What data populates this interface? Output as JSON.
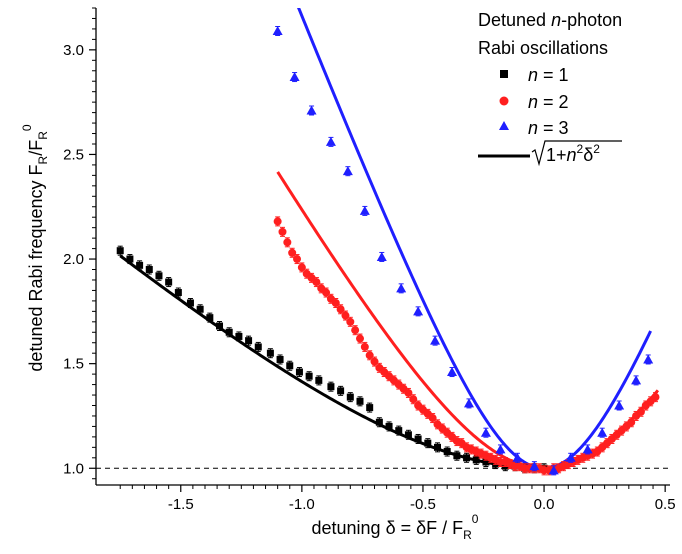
{
  "chart_data": {
    "type": "scatter",
    "xlabel": "detuning δ = δF / F",
    "xlabel_sub": "R",
    "xlabel_sup": "0",
    "ylabel": "detuned Rabi frequency F",
    "ylabel_sub1": "R",
    "ylabel_mid": "/F",
    "ylabel_sub2": "R",
    "ylabel_sup": "0",
    "xlim": [
      -1.85,
      0.52
    ],
    "ylim": [
      0.92,
      3.2
    ],
    "xticks": [
      -1.5,
      -1.0,
      -0.5,
      0.0,
      0.5
    ],
    "xtick_labels": [
      "-1.5",
      "-1.0",
      "-0.5",
      "0.0",
      "0.5"
    ],
    "yticks": [
      1.0,
      1.5,
      2.0,
      2.5,
      3.0
    ],
    "ytick_labels": [
      "1.0",
      "1.5",
      "2.0",
      "2.5",
      "3.0"
    ],
    "reference_line": {
      "y": 1.0,
      "style": "dashed"
    },
    "legend": {
      "position": "top-right",
      "title_line1": "Detuned",
      "title_italic": "n",
      "title_line1_rest": "-photon",
      "title_line2": "Rabi oscillations",
      "entries": [
        {
          "italic": "n",
          "text": " = 1"
        },
        {
          "italic": "n",
          "text": " = 2"
        },
        {
          "italic": "n",
          "text": " = 3"
        }
      ],
      "curve_label_prefix": "1+",
      "curve_label_n": "n",
      "curve_label_exp": "2",
      "curve_label_delta": "δ",
      "curve_label_delta_exp": "2"
    },
    "series": [
      {
        "name": "n = 1",
        "marker": "square",
        "color": "#000000",
        "x": [
          -1.75,
          -1.71,
          -1.67,
          -1.63,
          -1.59,
          -1.55,
          -1.51,
          -1.46,
          -1.42,
          -1.38,
          -1.34,
          -1.3,
          -1.26,
          -1.22,
          -1.18,
          -1.13,
          -1.09,
          -1.05,
          -1.01,
          -0.97,
          -0.93,
          -0.88,
          -0.84,
          -0.8,
          -0.76,
          -0.72,
          -0.68,
          -0.64,
          -0.6,
          -0.56,
          -0.52,
          -0.48,
          -0.44,
          -0.4,
          -0.36,
          -0.32,
          -0.28,
          -0.24,
          -0.2,
          -0.16,
          -0.12,
          -0.08,
          -0.04,
          0.0
        ],
        "y": [
          2.04,
          2.0,
          1.97,
          1.95,
          1.92,
          1.89,
          1.84,
          1.79,
          1.76,
          1.72,
          1.68,
          1.65,
          1.63,
          1.61,
          1.58,
          1.55,
          1.52,
          1.49,
          1.46,
          1.44,
          1.42,
          1.39,
          1.37,
          1.34,
          1.32,
          1.29,
          1.22,
          1.2,
          1.18,
          1.16,
          1.14,
          1.12,
          1.1,
          1.08,
          1.06,
          1.05,
          1.04,
          1.03,
          1.02,
          1.01,
          1.01,
          1.0,
          1.0,
          1.0
        ]
      },
      {
        "name": "n = 2",
        "marker": "circle",
        "color": "#ff1f1f",
        "x": [
          -1.1,
          -1.08,
          -1.06,
          -1.04,
          -1.02,
          -1.0,
          -0.98,
          -0.96,
          -0.94,
          -0.92,
          -0.9,
          -0.88,
          -0.86,
          -0.84,
          -0.82,
          -0.8,
          -0.78,
          -0.76,
          -0.74,
          -0.72,
          -0.7,
          -0.68,
          -0.66,
          -0.64,
          -0.62,
          -0.6,
          -0.58,
          -0.56,
          -0.54,
          -0.52,
          -0.5,
          -0.48,
          -0.46,
          -0.44,
          -0.42,
          -0.4,
          -0.38,
          -0.36,
          -0.34,
          -0.32,
          -0.3,
          -0.28,
          -0.26,
          -0.24,
          -0.22,
          -0.2,
          -0.18,
          -0.16,
          -0.14,
          -0.12,
          -0.1,
          -0.08,
          -0.06,
          -0.04,
          -0.02,
          0.0,
          0.02,
          0.04,
          0.06,
          0.08,
          0.1,
          0.12,
          0.14,
          0.16,
          0.18,
          0.2,
          0.22,
          0.24,
          0.26,
          0.28,
          0.3,
          0.32,
          0.34,
          0.36,
          0.38,
          0.4,
          0.42,
          0.44,
          0.46
        ],
        "y": [
          2.18,
          2.13,
          2.08,
          2.03,
          2.0,
          1.96,
          1.93,
          1.91,
          1.89,
          1.86,
          1.84,
          1.81,
          1.79,
          1.76,
          1.73,
          1.7,
          1.66,
          1.62,
          1.58,
          1.54,
          1.51,
          1.48,
          1.46,
          1.44,
          1.42,
          1.4,
          1.38,
          1.36,
          1.33,
          1.3,
          1.28,
          1.26,
          1.24,
          1.21,
          1.19,
          1.17,
          1.15,
          1.13,
          1.12,
          1.1,
          1.09,
          1.08,
          1.07,
          1.06,
          1.05,
          1.04,
          1.03,
          1.03,
          1.02,
          1.01,
          1.01,
          1.0,
          1.0,
          1.0,
          1.0,
          0.99,
          0.99,
          1.0,
          1.0,
          1.01,
          1.02,
          1.03,
          1.04,
          1.05,
          1.06,
          1.07,
          1.08,
          1.1,
          1.12,
          1.14,
          1.16,
          1.18,
          1.2,
          1.22,
          1.25,
          1.27,
          1.3,
          1.32,
          1.34
        ]
      },
      {
        "name": "n = 3",
        "marker": "triangle",
        "color": "#1f1fff",
        "x": [
          -1.1,
          -1.03,
          -0.96,
          -0.88,
          -0.81,
          -0.74,
          -0.67,
          -0.59,
          -0.52,
          -0.45,
          -0.38,
          -0.31,
          -0.24,
          -0.18,
          -0.11,
          -0.04,
          0.04,
          0.11,
          0.18,
          0.24,
          0.31,
          0.38,
          0.43
        ],
        "y": [
          3.09,
          2.87,
          2.71,
          2.56,
          2.42,
          2.23,
          2.01,
          1.86,
          1.75,
          1.61,
          1.46,
          1.31,
          1.17,
          1.09,
          1.05,
          1.01,
          0.99,
          1.05,
          1.09,
          1.17,
          1.3,
          1.42,
          1.52
        ]
      }
    ],
    "curves": [
      {
        "name": "n = 1 model",
        "n": 1,
        "color": "#000000",
        "x_range": [
          -1.75,
          0.0
        ]
      },
      {
        "name": "n = 2 model",
        "n": 2,
        "color": "#ff1f1f",
        "x_range": [
          -1.1,
          0.47
        ]
      },
      {
        "name": "n = 3 model",
        "n": 3,
        "color": "#1f1fff",
        "x_range": [
          -1.1,
          0.44
        ]
      }
    ]
  }
}
